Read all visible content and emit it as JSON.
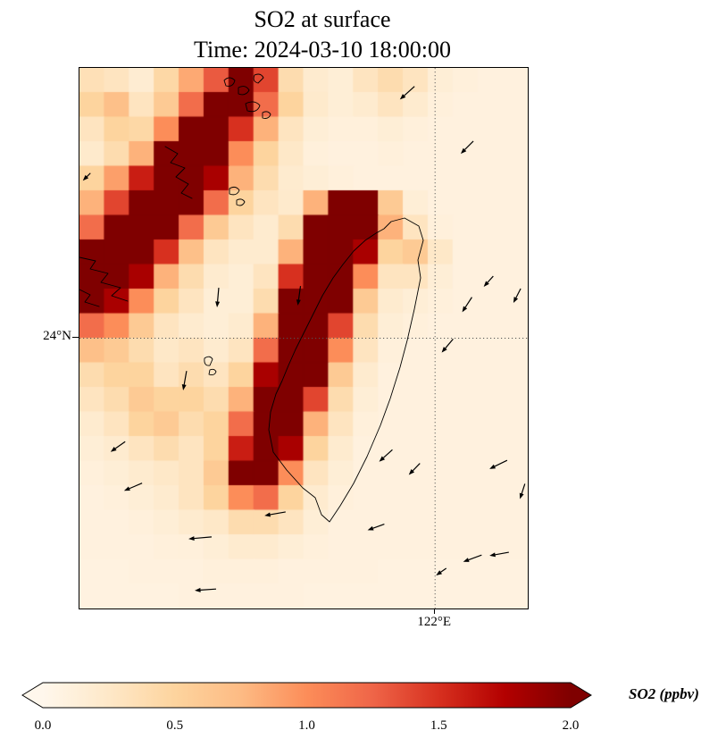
{
  "figure": {
    "title_line1": "SO2 at surface",
    "title_line2": "Time: 2024-03-10 18:00:00"
  },
  "map": {
    "lat_tick_label": "24°N",
    "lon_tick_label": "122°E"
  },
  "colorbar": {
    "label": "SO2 (ppbv)",
    "tick_labels": [
      "0.0",
      "0.5",
      "1.0",
      "1.5",
      "2.0"
    ]
  },
  "chart_data": {
    "type": "heatmap",
    "title": "SO2 at surface",
    "subtitle": "Time: 2024-03-10 18:00:00",
    "variable": "SO2",
    "units": "ppbv",
    "time": "2024-03-10 18:00:00",
    "projection": "PlateCarree (Taiwan region)",
    "lon_range": [
      118.05,
      123.03
    ],
    "lat_range": [
      21.0,
      27.0
    ],
    "gridlines": {
      "lat": [
        24
      ],
      "lon": [
        122
      ]
    },
    "grid_on": true,
    "colormap": "OrRd",
    "vmin": 0.0,
    "vmax": 2.0,
    "colorbar_extend": "both",
    "colorbar_ticks": [
      0.0,
      0.5,
      1.0,
      1.5,
      2.0
    ],
    "colormap_stops": [
      [
        0.0,
        "#fff7ec"
      ],
      [
        0.125,
        "#fee8c8"
      ],
      [
        0.25,
        "#fdd49e"
      ],
      [
        0.375,
        "#fdbb84"
      ],
      [
        0.5,
        "#fc8d59"
      ],
      [
        0.625,
        "#ef6548"
      ],
      [
        0.75,
        "#d7301f"
      ],
      [
        0.875,
        "#b30000"
      ],
      [
        1.0,
        "#7f0000"
      ]
    ],
    "nx": 18,
    "ny": 22,
    "so2_grid": [
      [
        0.35,
        0.3,
        0.18,
        0.45,
        0.85,
        1.3,
        2.2,
        1.4,
        0.4,
        0.2,
        0.15,
        0.3,
        0.4,
        0.3,
        0.15,
        0.12,
        0.1,
        0.1
      ],
      [
        0.5,
        0.7,
        0.3,
        0.6,
        1.2,
        2.2,
        2.2,
        1.2,
        0.5,
        0.22,
        0.15,
        0.2,
        0.3,
        0.2,
        0.12,
        0.1,
        0.1,
        0.1
      ],
      [
        0.3,
        0.5,
        0.45,
        1.0,
        2.2,
        2.2,
        1.5,
        0.8,
        0.3,
        0.15,
        0.12,
        0.12,
        0.15,
        0.12,
        0.1,
        0.1,
        0.1,
        0.1
      ],
      [
        0.22,
        0.4,
        0.8,
        2.0,
        2.2,
        2.2,
        1.0,
        0.5,
        0.25,
        0.12,
        0.1,
        0.1,
        0.12,
        0.1,
        0.1,
        0.1,
        0.1,
        0.1
      ],
      [
        0.5,
        0.9,
        1.6,
        2.2,
        2.2,
        1.8,
        0.8,
        0.4,
        0.2,
        0.15,
        0.12,
        0.1,
        0.1,
        0.1,
        0.1,
        0.1,
        0.1,
        0.1
      ],
      [
        0.8,
        1.4,
        2.2,
        2.2,
        2.0,
        1.2,
        0.5,
        0.3,
        0.22,
        0.8,
        2.0,
        2.0,
        0.6,
        0.15,
        0.1,
        0.1,
        0.1,
        0.1
      ],
      [
        1.2,
        2.0,
        2.2,
        2.2,
        1.2,
        0.6,
        0.3,
        0.2,
        0.4,
        2.0,
        2.2,
        2.2,
        0.8,
        0.3,
        0.12,
        0.1,
        0.1,
        0.1
      ],
      [
        2.2,
        2.2,
        2.2,
        1.5,
        0.7,
        0.3,
        0.2,
        0.2,
        0.8,
        2.2,
        2.2,
        1.8,
        0.5,
        0.6,
        0.25,
        0.1,
        0.1,
        0.1
      ],
      [
        2.2,
        2.2,
        1.8,
        0.8,
        0.4,
        0.2,
        0.15,
        0.3,
        1.5,
        2.2,
        2.2,
        1.0,
        0.3,
        0.3,
        0.15,
        0.1,
        0.1,
        0.1
      ],
      [
        2.0,
        1.8,
        1.0,
        0.5,
        0.3,
        0.15,
        0.15,
        0.4,
        2.0,
        2.2,
        2.0,
        0.6,
        0.2,
        0.15,
        0.12,
        0.1,
        0.1,
        0.1
      ],
      [
        1.2,
        1.0,
        0.6,
        0.3,
        0.2,
        0.15,
        0.2,
        0.8,
        2.2,
        2.2,
        1.4,
        0.4,
        0.15,
        0.12,
        0.1,
        0.1,
        0.1,
        0.1
      ],
      [
        0.7,
        0.6,
        0.4,
        0.25,
        0.3,
        0.2,
        0.3,
        1.2,
        2.2,
        2.2,
        1.0,
        0.3,
        0.12,
        0.1,
        0.1,
        0.1,
        0.1,
        0.1
      ],
      [
        0.4,
        0.5,
        0.5,
        0.3,
        0.4,
        0.3,
        0.5,
        1.8,
        2.2,
        2.0,
        0.6,
        0.2,
        0.1,
        0.1,
        0.1,
        0.1,
        0.1,
        0.1
      ],
      [
        0.3,
        0.4,
        0.6,
        0.5,
        0.5,
        0.4,
        0.8,
        2.2,
        2.2,
        1.4,
        0.4,
        0.15,
        0.1,
        0.1,
        0.1,
        0.1,
        0.1,
        0.1
      ],
      [
        0.2,
        0.3,
        0.5,
        0.6,
        0.4,
        0.5,
        1.2,
        2.2,
        2.2,
        0.8,
        0.3,
        0.12,
        0.1,
        0.1,
        0.1,
        0.1,
        0.1,
        0.1
      ],
      [
        0.15,
        0.2,
        0.3,
        0.4,
        0.3,
        0.5,
        1.6,
        2.2,
        1.8,
        0.5,
        0.2,
        0.1,
        0.1,
        0.1,
        0.1,
        0.1,
        0.1,
        0.1
      ],
      [
        0.12,
        0.15,
        0.2,
        0.25,
        0.3,
        0.6,
        2.0,
        2.2,
        1.0,
        0.3,
        0.15,
        0.1,
        0.1,
        0.1,
        0.1,
        0.1,
        0.1,
        0.1
      ],
      [
        0.1,
        0.12,
        0.15,
        0.2,
        0.3,
        0.5,
        1.0,
        1.2,
        0.5,
        0.2,
        0.12,
        0.1,
        0.1,
        0.1,
        0.1,
        0.1,
        0.1,
        0.1
      ],
      [
        0.1,
        0.1,
        0.12,
        0.15,
        0.2,
        0.25,
        0.4,
        0.4,
        0.3,
        0.15,
        0.1,
        0.1,
        0.1,
        0.1,
        0.1,
        0.1,
        0.1,
        0.1
      ],
      [
        0.1,
        0.1,
        0.1,
        0.12,
        0.12,
        0.15,
        0.2,
        0.2,
        0.15,
        0.12,
        0.1,
        0.1,
        0.1,
        0.1,
        0.1,
        0.1,
        0.1,
        0.1
      ],
      [
        0.08,
        0.08,
        0.1,
        0.1,
        0.1,
        0.12,
        0.12,
        0.12,
        0.1,
        0.1,
        0.1,
        0.1,
        0.08,
        0.08,
        0.08,
        0.08,
        0.08,
        0.08
      ],
      [
        0.08,
        0.08,
        0.08,
        0.08,
        0.1,
        0.1,
        0.1,
        0.1,
        0.1,
        0.08,
        0.08,
        0.08,
        0.08,
        0.08,
        0.08,
        0.08,
        0.08,
        0.08
      ]
    ],
    "arrow_format": "[x_px, y_px, direction_deg_math_convention, length_px]",
    "wind_arrows": [
      [
        455,
        103,
        222,
        22
      ],
      [
        522,
        164,
        225,
        20
      ],
      [
        96,
        197,
        225,
        12
      ],
      [
        243,
        332,
        265,
        22
      ],
      [
        334,
        330,
        262,
        22
      ],
      [
        546,
        314,
        228,
        16
      ],
      [
        578,
        330,
        243,
        18
      ],
      [
        522,
        340,
        237,
        20
      ],
      [
        500,
        386,
        230,
        20
      ],
      [
        206,
        425,
        260,
        22
      ],
      [
        131,
        499,
        215,
        20
      ],
      [
        148,
        544,
        203,
        22
      ],
      [
        307,
        574,
        190,
        24
      ],
      [
        223,
        601,
        185,
        26
      ],
      [
        420,
        589,
        200,
        20
      ],
      [
        431,
        509,
        222,
        20
      ],
      [
        463,
        524,
        226,
        18
      ],
      [
        557,
        519,
        206,
        22
      ],
      [
        584,
        549,
        252,
        18
      ],
      [
        528,
        624,
        200,
        22
      ],
      [
        558,
        619,
        190,
        22
      ],
      [
        493,
        639,
        215,
        14
      ],
      [
        229,
        659,
        184,
        24
      ]
    ]
  }
}
